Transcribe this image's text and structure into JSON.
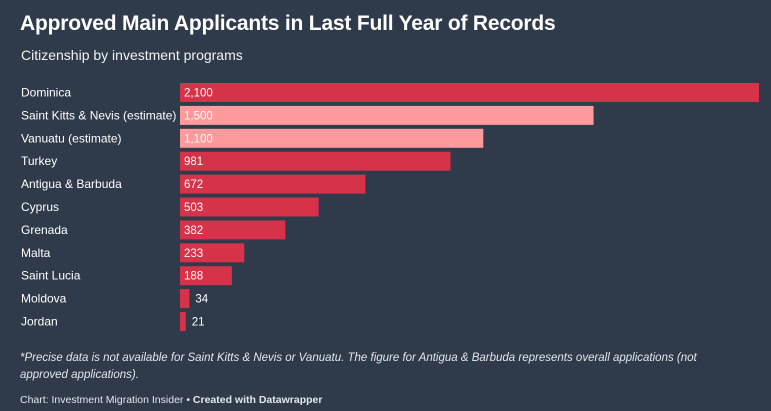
{
  "header": {
    "title": "Approved Main Applicants in Last Full Year of Records",
    "subtitle": "Citizenship by investment programs"
  },
  "colors": {
    "background": "#2f3a4a",
    "bar_primary": "#d6334a",
    "bar_estimate": "#ff9a9c",
    "text": "#ffffff"
  },
  "chart_data": {
    "type": "bar",
    "orientation": "horizontal",
    "categories": [
      "Dominica",
      "Saint Kitts & Nevis (estimate)",
      "Vanuatu (estimate)",
      "Turkey",
      "Antigua & Barbuda",
      "Cyprus",
      "Grenada",
      "Malta",
      "Saint Lucia",
      "Moldova",
      "Jordan"
    ],
    "values": [
      2100,
      1500,
      1100,
      981,
      672,
      503,
      382,
      233,
      188,
      34,
      21
    ],
    "value_labels": [
      "2,100",
      "1,500",
      "1,100",
      "981",
      "672",
      "503",
      "382",
      "233",
      "188",
      "34",
      "21"
    ],
    "estimate": [
      false,
      true,
      true,
      false,
      false,
      false,
      false,
      false,
      false,
      false,
      false
    ],
    "xlim": [
      0,
      2100
    ],
    "grid": false
  },
  "notes": {
    "text": "*Precise data is not available for Saint Kitts & Nevis or Vanuatu. The figure for Antigua & Barbuda represents overall applications (not approved applications)."
  },
  "footer": {
    "source": "Chart: Investment Migration Insider",
    "separator": " • ",
    "credit": "Created with Datawrapper"
  }
}
